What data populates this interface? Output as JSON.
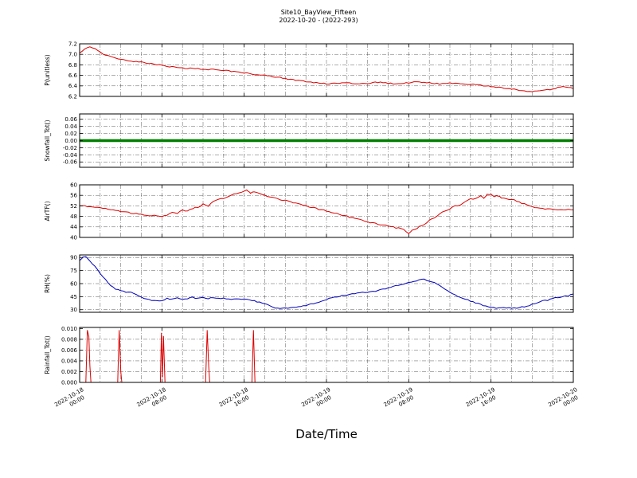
{
  "figure": {
    "title_line1": "Site10_BayView_Fifteen",
    "title_line2": "2022-10-20 - (2022-293)",
    "xlabel": "Date/Time"
  },
  "chart_data": {
    "type": "line",
    "title": "Site10_BayView_Fifteen",
    "subtitle": "2022-10-20 - (2022-293)",
    "xlabel": "Date/Time",
    "x_unit": "hours since 2022-10-18 00:00",
    "x_range": [
      0,
      48
    ],
    "x_ticks": [
      0,
      8,
      16,
      24,
      32,
      40,
      48
    ],
    "x_tick_labels": [
      [
        "2022-10-18",
        "00:00"
      ],
      [
        "2022-10-18",
        "08:00"
      ],
      [
        "2022-10-18",
        "16:00"
      ],
      [
        "2022-10-19",
        "00:00"
      ],
      [
        "2022-10-19",
        "08:00"
      ],
      [
        "2022-10-19",
        "16:00"
      ],
      [
        "2022-10-20",
        "00:00"
      ]
    ],
    "grid": {
      "style": "dash-dot",
      "x_interval_hours": 2
    },
    "panels": [
      {
        "ylabel": "P(unitless)",
        "color": "#dd0000",
        "line_width": 1,
        "ylim": [
          6.2,
          7.2
        ],
        "yticks": [
          6.2,
          6.4,
          6.6,
          6.8,
          7.0,
          7.2
        ],
        "ytick_labels": [
          "6.2",
          "6.4",
          "6.6",
          "6.8",
          "7.0",
          "7.2"
        ],
        "points": [
          [
            0,
            7.02
          ],
          [
            0.5,
            7.1
          ],
          [
            1,
            7.15
          ],
          [
            1.5,
            7.1
          ],
          [
            2,
            7.04
          ],
          [
            2.5,
            6.99
          ],
          [
            3,
            6.96
          ],
          [
            4,
            6.9
          ],
          [
            5,
            6.87
          ],
          [
            6,
            6.85
          ],
          [
            7,
            6.82
          ],
          [
            8,
            6.79
          ],
          [
            9,
            6.76
          ],
          [
            10,
            6.74
          ],
          [
            11,
            6.73
          ],
          [
            12,
            6.72
          ],
          [
            13,
            6.71
          ],
          [
            14,
            6.7
          ],
          [
            15,
            6.67
          ],
          [
            16,
            6.65
          ],
          [
            17,
            6.62
          ],
          [
            18,
            6.6
          ],
          [
            19,
            6.57
          ],
          [
            20,
            6.54
          ],
          [
            21,
            6.51
          ],
          [
            22,
            6.48
          ],
          [
            23,
            6.46
          ],
          [
            24,
            6.44
          ],
          [
            25,
            6.45
          ],
          [
            26,
            6.46
          ],
          [
            27,
            6.44
          ],
          [
            28,
            6.45
          ],
          [
            29,
            6.47
          ],
          [
            30,
            6.45
          ],
          [
            31,
            6.44
          ],
          [
            32,
            6.46
          ],
          [
            33,
            6.48
          ],
          [
            34,
            6.46
          ],
          [
            35,
            6.44
          ],
          [
            36,
            6.45
          ],
          [
            37,
            6.45
          ],
          [
            38,
            6.43
          ],
          [
            39,
            6.41
          ],
          [
            40,
            6.39
          ],
          [
            41,
            6.37
          ],
          [
            42,
            6.34
          ],
          [
            43,
            6.31
          ],
          [
            44,
            6.29
          ],
          [
            45,
            6.31
          ],
          [
            46,
            6.34
          ],
          [
            47,
            6.39
          ],
          [
            47.5,
            6.37
          ],
          [
            48,
            6.35
          ]
        ]
      },
      {
        "ylabel": "Snowfall_Tot()",
        "color": "#007f00",
        "line_width": 3.5,
        "ylim": [
          -0.075,
          0.075
        ],
        "yticks": [
          -0.06,
          -0.04,
          -0.02,
          0.0,
          0.02,
          0.04,
          0.06
        ],
        "ytick_labels": [
          "-0.06",
          "-0.04",
          "-0.02",
          "0.00",
          "0.02",
          "0.04",
          "0.06"
        ],
        "points": [
          [
            0,
            0
          ],
          [
            48,
            0
          ]
        ]
      },
      {
        "ylabel": "AirTF()",
        "color": "#dd0000",
        "line_width": 1,
        "ylim": [
          40,
          60
        ],
        "yticks": [
          40,
          44,
          48,
          52,
          56,
          60
        ],
        "ytick_labels": [
          "40",
          "44",
          "48",
          "52",
          "56",
          "60"
        ],
        "points": [
          [
            0,
            52
          ],
          [
            1,
            51.8
          ],
          [
            2,
            51.2
          ],
          [
            3,
            50.5
          ],
          [
            4,
            50
          ],
          [
            5,
            49.3
          ],
          [
            6,
            48.8
          ],
          [
            7,
            48.3
          ],
          [
            8,
            48
          ],
          [
            8.5,
            48.5
          ],
          [
            9,
            49.5
          ],
          [
            9.5,
            49
          ],
          [
            10,
            50.5
          ],
          [
            10.5,
            50
          ],
          [
            11,
            51
          ],
          [
            11.5,
            51.5
          ],
          [
            12,
            52.5
          ],
          [
            12.5,
            52
          ],
          [
            13,
            53.5
          ],
          [
            13.5,
            54.5
          ],
          [
            14,
            55
          ],
          [
            14.5,
            55.5
          ],
          [
            15,
            56.5
          ],
          [
            15.5,
            57
          ],
          [
            16,
            57.5
          ],
          [
            16.3,
            58
          ],
          [
            16.6,
            57
          ],
          [
            17,
            57.5
          ],
          [
            17.5,
            56.5
          ],
          [
            18,
            56
          ],
          [
            19,
            55
          ],
          [
            20,
            54
          ],
          [
            21,
            53
          ],
          [
            22,
            52
          ],
          [
            23,
            51
          ],
          [
            24,
            50
          ],
          [
            25,
            49
          ],
          [
            26,
            48
          ],
          [
            27,
            47
          ],
          [
            28,
            46
          ],
          [
            29,
            45
          ],
          [
            30,
            44.3
          ],
          [
            31,
            43.5
          ],
          [
            31.5,
            43
          ],
          [
            32,
            41.5
          ],
          [
            32.3,
            42.5
          ],
          [
            32.6,
            43
          ],
          [
            33,
            44
          ],
          [
            33.5,
            45
          ],
          [
            34,
            46.5
          ],
          [
            34.5,
            47.5
          ],
          [
            35,
            49
          ],
          [
            35.5,
            50
          ],
          [
            36,
            51
          ],
          [
            36.5,
            52
          ],
          [
            37,
            52.5
          ],
          [
            37.5,
            53.5
          ],
          [
            38,
            54.5
          ],
          [
            38.5,
            55
          ],
          [
            39,
            55.8
          ],
          [
            39.3,
            55
          ],
          [
            39.6,
            56.3
          ],
          [
            40,
            56.5
          ],
          [
            40.3,
            55.5
          ],
          [
            40.6,
            56
          ],
          [
            41,
            55
          ],
          [
            41.5,
            54.8
          ],
          [
            42,
            54.5
          ],
          [
            42.5,
            53.8
          ],
          [
            43,
            53
          ],
          [
            43.5,
            52.3
          ],
          [
            44,
            51.5
          ],
          [
            44.5,
            51.2
          ],
          [
            45,
            51
          ],
          [
            45.5,
            50.8
          ],
          [
            46,
            50.5
          ],
          [
            47,
            50.5
          ],
          [
            48,
            50.5
          ]
        ]
      },
      {
        "ylabel": "RH(%)",
        "color": "#0000bb",
        "line_width": 1,
        "ylim": [
          27,
          93
        ],
        "yticks": [
          30,
          45,
          60,
          75,
          90
        ],
        "ytick_labels": [
          "30",
          "45",
          "60",
          "75",
          "90"
        ],
        "points": [
          [
            0,
            87
          ],
          [
            0.3,
            90
          ],
          [
            0.6,
            91
          ],
          [
            1,
            86
          ],
          [
            1.5,
            80
          ],
          [
            2,
            72
          ],
          [
            2.5,
            65
          ],
          [
            3,
            58
          ],
          [
            3.5,
            54
          ],
          [
            4,
            52
          ],
          [
            4.5,
            50
          ],
          [
            5,
            50
          ],
          [
            5.5,
            47
          ],
          [
            6,
            44
          ],
          [
            6.5,
            42
          ],
          [
            7,
            41
          ],
          [
            7.5,
            40
          ],
          [
            8,
            40
          ],
          [
            8.5,
            43
          ],
          [
            9,
            42
          ],
          [
            9.5,
            44
          ],
          [
            10,
            42
          ],
          [
            10.5,
            43
          ],
          [
            11,
            44
          ],
          [
            11.5,
            43
          ],
          [
            12,
            44
          ],
          [
            12.5,
            43
          ],
          [
            13,
            44
          ],
          [
            13.5,
            43
          ],
          [
            14,
            43
          ],
          [
            15,
            42
          ],
          [
            16,
            42
          ],
          [
            17,
            40
          ],
          [
            18,
            37
          ],
          [
            18.5,
            34
          ],
          [
            19,
            32
          ],
          [
            19.5,
            31
          ],
          [
            20,
            32
          ],
          [
            20.5,
            32
          ],
          [
            21,
            33
          ],
          [
            21.5,
            34
          ],
          [
            22,
            35
          ],
          [
            23,
            38
          ],
          [
            24,
            42
          ],
          [
            25,
            45
          ],
          [
            26,
            47
          ],
          [
            27,
            49
          ],
          [
            28,
            50
          ],
          [
            29,
            52
          ],
          [
            30,
            55
          ],
          [
            31,
            58
          ],
          [
            32,
            61
          ],
          [
            33,
            64
          ],
          [
            33.5,
            65
          ],
          [
            34,
            63
          ],
          [
            34.5,
            61
          ],
          [
            35,
            58
          ],
          [
            35.5,
            54
          ],
          [
            36,
            50
          ],
          [
            36.5,
            47
          ],
          [
            37,
            44
          ],
          [
            37.5,
            42
          ],
          [
            38,
            40
          ],
          [
            38.5,
            38
          ],
          [
            39,
            36
          ],
          [
            39.5,
            34
          ],
          [
            40,
            33
          ],
          [
            40.5,
            32
          ],
          [
            41,
            32
          ],
          [
            42,
            32
          ],
          [
            42.5,
            32
          ],
          [
            43,
            33
          ],
          [
            43.5,
            34
          ],
          [
            44,
            36
          ],
          [
            44.5,
            38
          ],
          [
            45,
            40
          ],
          [
            45.5,
            41
          ],
          [
            46,
            43
          ],
          [
            46.5,
            44
          ],
          [
            47,
            45
          ],
          [
            47.5,
            46
          ],
          [
            48,
            48
          ]
        ]
      },
      {
        "ylabel": "Rainfall_Tot()",
        "color": "#dd0000",
        "line_width": 1,
        "ylim": [
          0,
          0.0102
        ],
        "yticks": [
          0.0,
          0.002,
          0.004,
          0.006,
          0.008,
          0.01
        ],
        "ytick_labels": [
          "0.000",
          "0.002",
          "0.004",
          "0.006",
          "0.008",
          "0.010"
        ],
        "points": [
          [
            0,
            0
          ],
          [
            0.6,
            0
          ],
          [
            0.75,
            0.0097
          ],
          [
            0.9,
            0.0085
          ],
          [
            1.0,
            0.003
          ],
          [
            1.1,
            0
          ],
          [
            3.7,
            0
          ],
          [
            3.85,
            0.0097
          ],
          [
            4.0,
            0.002
          ],
          [
            4.1,
            0
          ],
          [
            7.85,
            0
          ],
          [
            7.95,
            0.0092
          ],
          [
            8.05,
            0.001
          ],
          [
            8.15,
            0.0086
          ],
          [
            8.3,
            0
          ],
          [
            12.25,
            0
          ],
          [
            12.4,
            0.0097
          ],
          [
            12.55,
            0.003
          ],
          [
            12.65,
            0
          ],
          [
            16.75,
            0
          ],
          [
            16.9,
            0.0097
          ],
          [
            17.05,
            0
          ],
          [
            48,
            0
          ]
        ]
      }
    ]
  }
}
